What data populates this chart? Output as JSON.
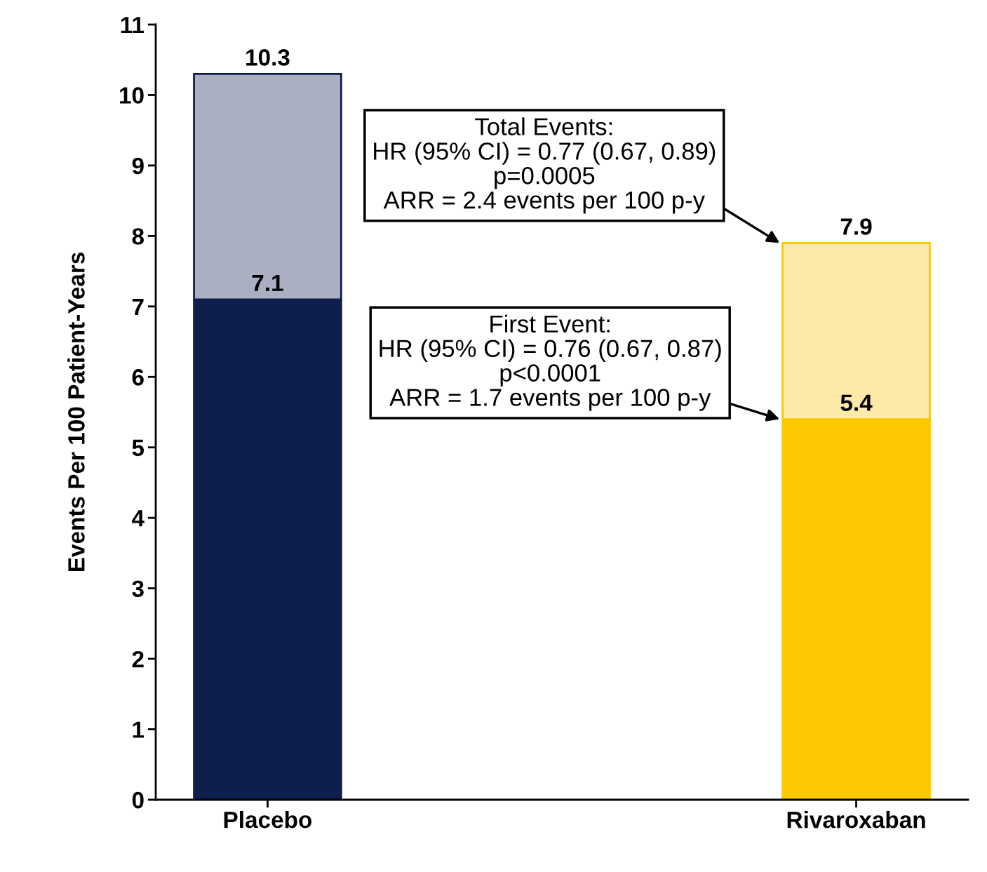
{
  "chart_data": {
    "type": "bar",
    "stacked": true,
    "ylabel": "Events Per 100 Patient-Years",
    "categories": [
      "Placebo",
      "Rivaroxaban"
    ],
    "series": [
      {
        "colors": [
          "#0f1f4b",
          "#fcc800"
        ],
        "values": [
          7.1,
          5.4
        ],
        "value_labels": [
          "7.1",
          "5.4"
        ]
      },
      {
        "colors": [
          "#aab0c2",
          "#fde9a8"
        ],
        "values": [
          3.2,
          2.5
        ]
      }
    ],
    "totals": [
      "10.3",
      "7.9"
    ],
    "ylim": [
      0,
      11
    ],
    "yticks": [
      0,
      1,
      2,
      3,
      4,
      5,
      6,
      7,
      8,
      9,
      10,
      11
    ],
    "grid": false,
    "legend": false,
    "annotations": [
      "Total Events:\nHR (95% CI) = 0.77 (0.67, 0.89)\np=0.0005\nARR = 2.4 events per 100 p-y",
      "First Event:\nHR (95% CI) = 0.76 (0.67, 0.87)\np<0.0001\nARR = 1.7 events per 100 p-y"
    ]
  }
}
